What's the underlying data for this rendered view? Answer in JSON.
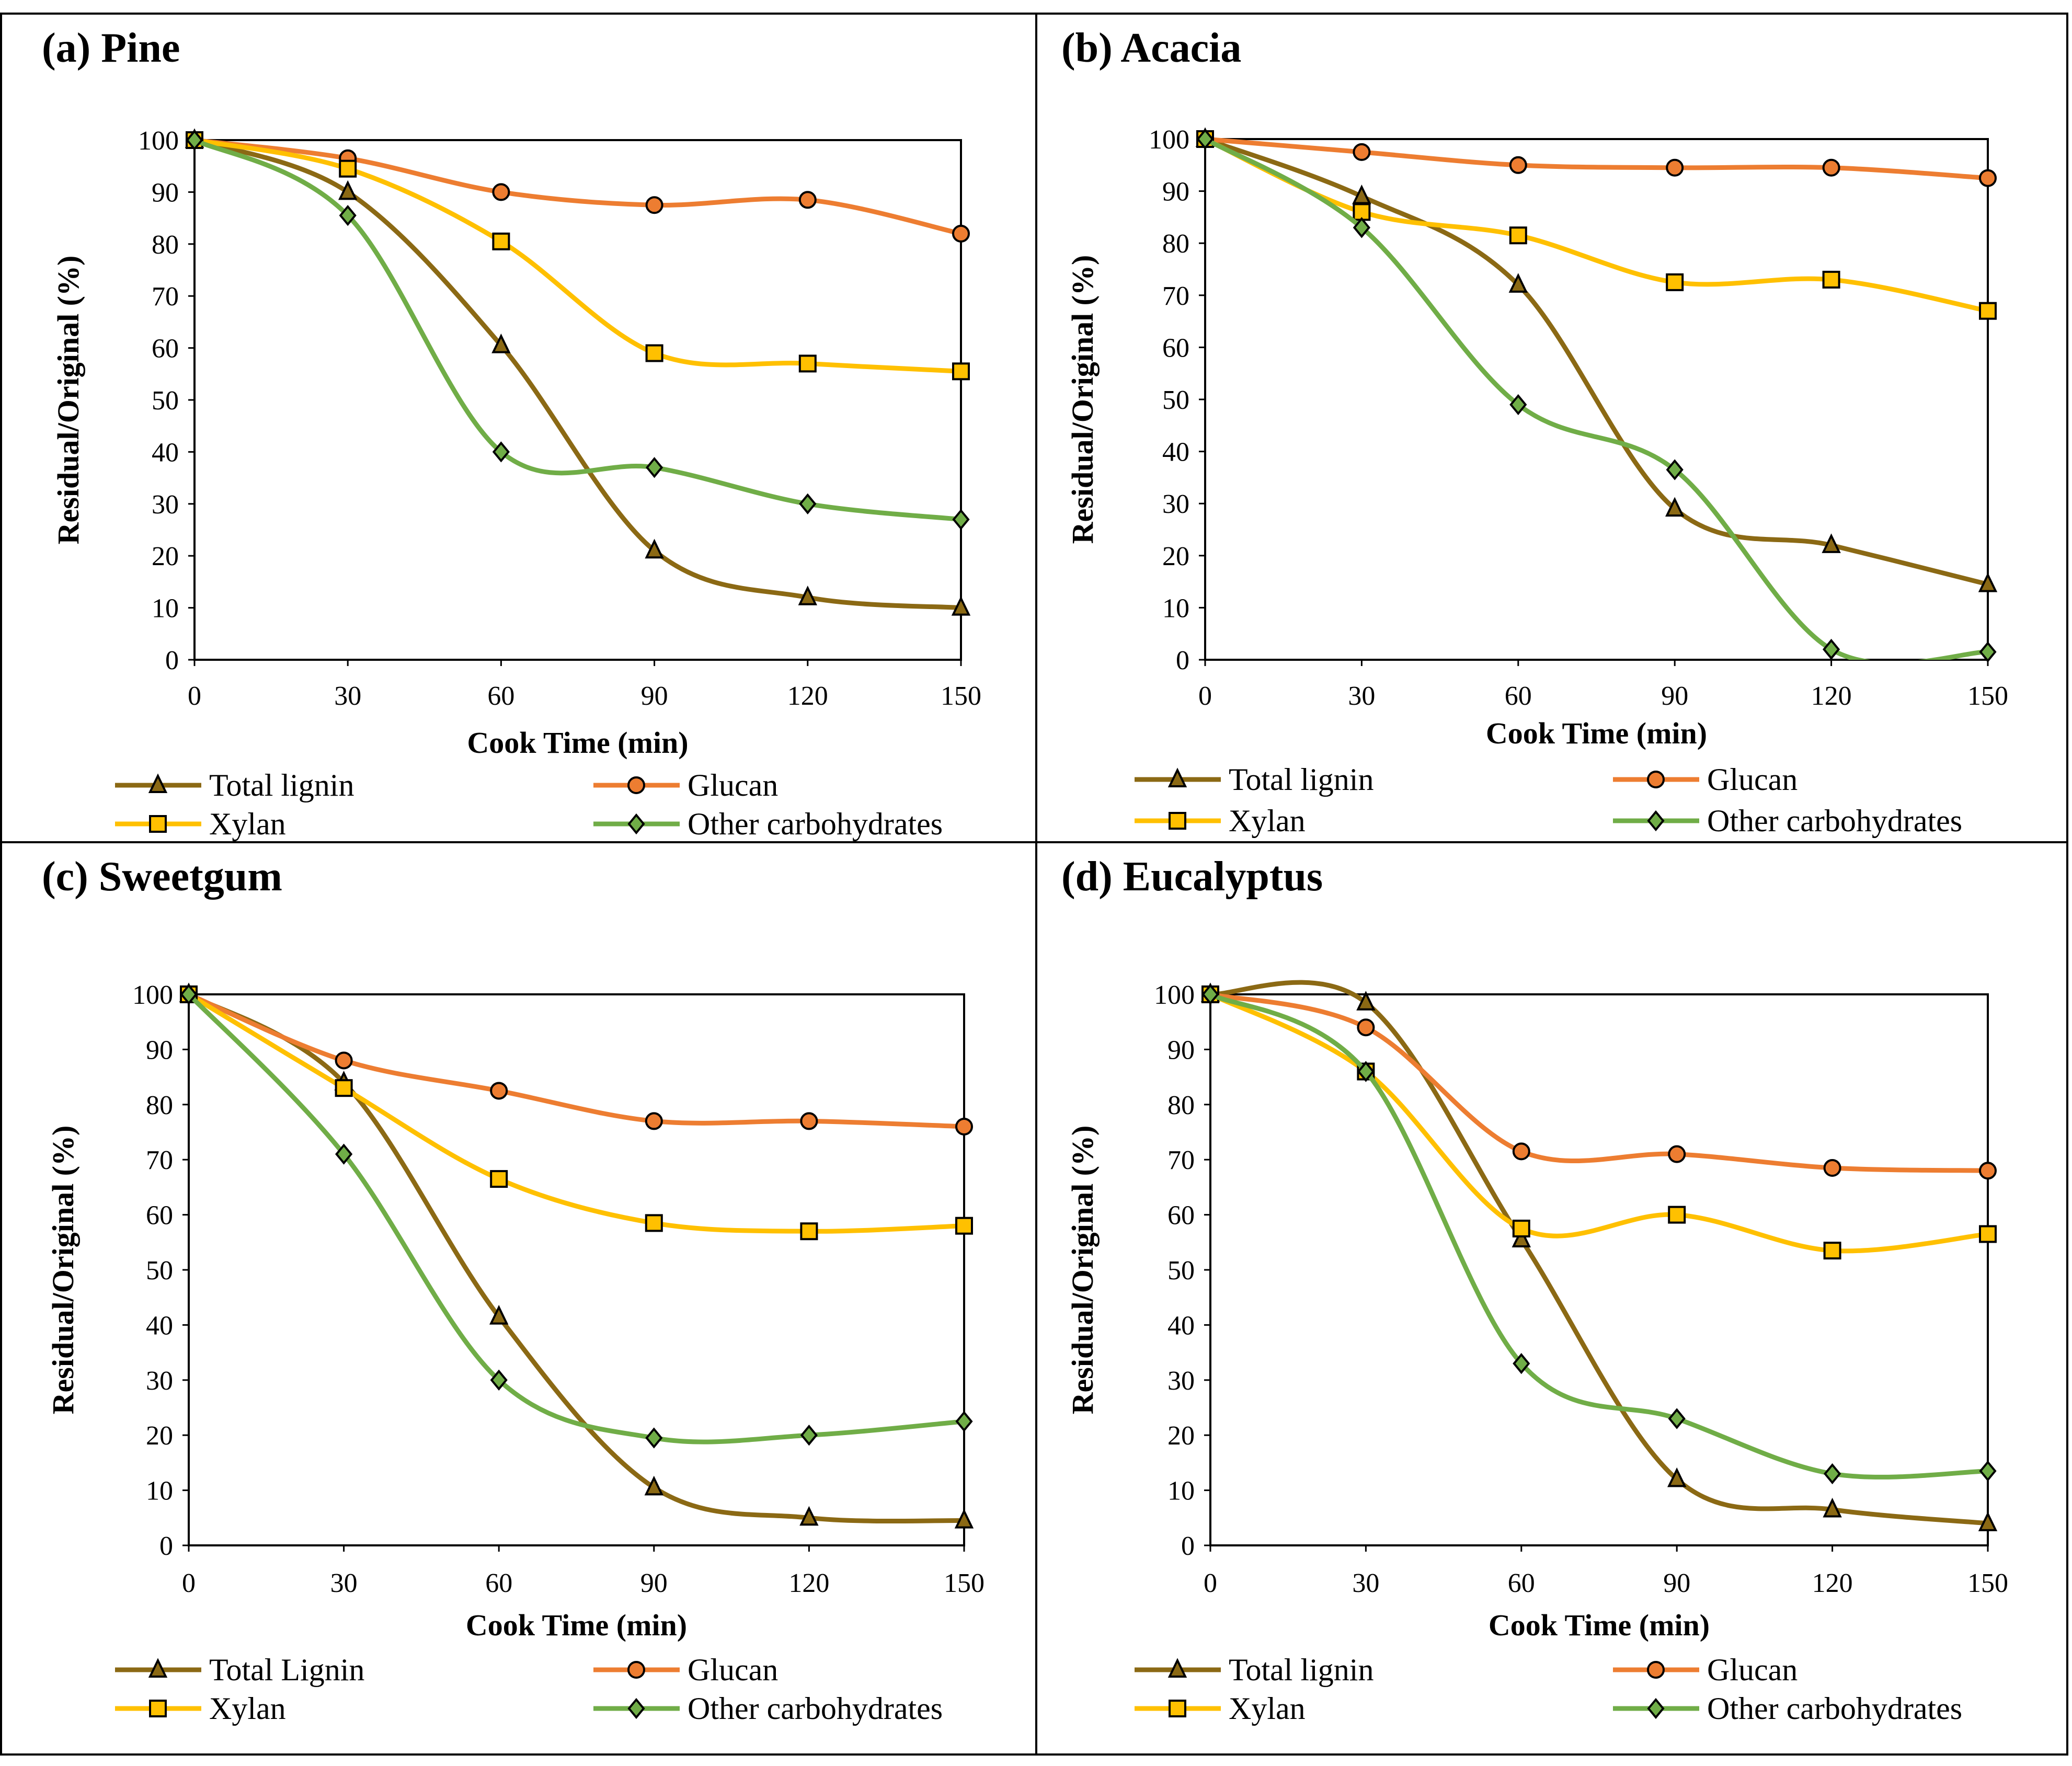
{
  "colors": {
    "lignin": "#8B6914",
    "glucan": "#ED7D31",
    "xylan": "#FFC000",
    "other": "#70AD47",
    "frame": "#000000"
  },
  "markers": {
    "lignin": "triangle-marker",
    "glucan": "circle-marker",
    "xylan": "square-marker",
    "other": "diamond-marker"
  },
  "chart_data": [
    {
      "type": "line",
      "title": "(a) Pine",
      "xlabel": "Cook Time (min)",
      "ylabel": "Residual/Original (%)",
      "x": [
        0,
        30,
        60,
        90,
        120,
        150
      ],
      "xticks": [
        "0",
        "30",
        "60",
        "90",
        "120",
        "150"
      ],
      "yticks": [
        "0",
        "10",
        "20",
        "30",
        "40",
        "50",
        "60",
        "70",
        "80",
        "90",
        "100"
      ],
      "xlim": [
        0,
        150
      ],
      "ylim": [
        0,
        100
      ],
      "series": [
        {
          "key": "lignin",
          "name": "Total lignin",
          "values": [
            100,
            90,
            60.5,
            21,
            12,
            10
          ]
        },
        {
          "key": "glucan",
          "name": "Glucan",
          "values": [
            100,
            96.5,
            90,
            87.5,
            88.5,
            82
          ]
        },
        {
          "key": "xylan",
          "name": "Xylan",
          "values": [
            100,
            94.5,
            80.5,
            59,
            57,
            55.5
          ]
        },
        {
          "key": "other",
          "name": "Other carbohydrates",
          "values": [
            100,
            85.5,
            40,
            37,
            30,
            27
          ]
        }
      ]
    },
    {
      "type": "line",
      "title": "(b) Acacia",
      "xlabel": "Cook Time (min)",
      "ylabel": "Residual/Original (%)",
      "x": [
        0,
        30,
        60,
        90,
        120,
        150
      ],
      "xticks": [
        "0",
        "30",
        "60",
        "90",
        "120",
        "150"
      ],
      "yticks": [
        "0",
        "10",
        "20",
        "30",
        "40",
        "50",
        "60",
        "70",
        "80",
        "90",
        "100"
      ],
      "xlim": [
        0,
        150
      ],
      "ylim": [
        0,
        100
      ],
      "series": [
        {
          "key": "lignin",
          "name": "Total lignin",
          "values": [
            100,
            89,
            72,
            29,
            22,
            14.5
          ]
        },
        {
          "key": "glucan",
          "name": "Glucan",
          "values": [
            100,
            97.5,
            95,
            94.5,
            94.5,
            92.5
          ]
        },
        {
          "key": "xylan",
          "name": "Xylan",
          "values": [
            100,
            86,
            81.5,
            72.5,
            73,
            67
          ]
        },
        {
          "key": "other",
          "name": "Other carbohydrates",
          "values": [
            100,
            83,
            49,
            36.5,
            2,
            1.5
          ]
        }
      ]
    },
    {
      "type": "line",
      "title": "(c) Sweetgum",
      "xlabel": "Cook Time (min)",
      "ylabel": "Residual/Original (%)",
      "x": [
        0,
        30,
        60,
        90,
        120,
        150
      ],
      "xticks": [
        "0",
        "30",
        "60",
        "90",
        "120",
        "150"
      ],
      "yticks": [
        "0",
        "10",
        "20",
        "30",
        "40",
        "50",
        "60",
        "70",
        "80",
        "90",
        "100"
      ],
      "xlim": [
        0,
        150
      ],
      "ylim": [
        0,
        100
      ],
      "series": [
        {
          "key": "lignin",
          "name": "Total Lignin",
          "values": [
            100,
            84,
            41.5,
            10.5,
            5,
            4.5
          ]
        },
        {
          "key": "glucan",
          "name": "Glucan",
          "values": [
            100,
            88,
            82.5,
            77,
            77,
            76
          ]
        },
        {
          "key": "xylan",
          "name": "Xylan",
          "values": [
            100,
            83,
            66.5,
            58.5,
            57,
            58
          ]
        },
        {
          "key": "other",
          "name": "Other carbohydrates",
          "values": [
            100,
            71,
            30,
            19.5,
            20,
            22.5
          ]
        }
      ]
    },
    {
      "type": "line",
      "title": "(d) Eucalyptus",
      "xlabel": "Cook Time (min)",
      "ylabel": "Residual/Original (%)",
      "x": [
        0,
        30,
        60,
        90,
        120,
        150
      ],
      "xticks": [
        "0",
        "30",
        "60",
        "90",
        "120",
        "150"
      ],
      "yticks": [
        "0",
        "10",
        "20",
        "30",
        "40",
        "50",
        "60",
        "70",
        "80",
        "90",
        "100"
      ],
      "xlim": [
        0,
        150
      ],
      "ylim": [
        0,
        100
      ],
      "series": [
        {
          "key": "lignin",
          "name": "Total lignin",
          "values": [
            100,
            98.5,
            55.5,
            12,
            6.5,
            4
          ]
        },
        {
          "key": "glucan",
          "name": "Glucan",
          "values": [
            100,
            94,
            71.5,
            71,
            68.5,
            68
          ]
        },
        {
          "key": "xylan",
          "name": "Xylan",
          "values": [
            100,
            86,
            57.5,
            60,
            53.5,
            56.5
          ]
        },
        {
          "key": "other",
          "name": "Other carbohydrates",
          "values": [
            100,
            86,
            33,
            23,
            13,
            13.5
          ]
        }
      ]
    }
  ]
}
